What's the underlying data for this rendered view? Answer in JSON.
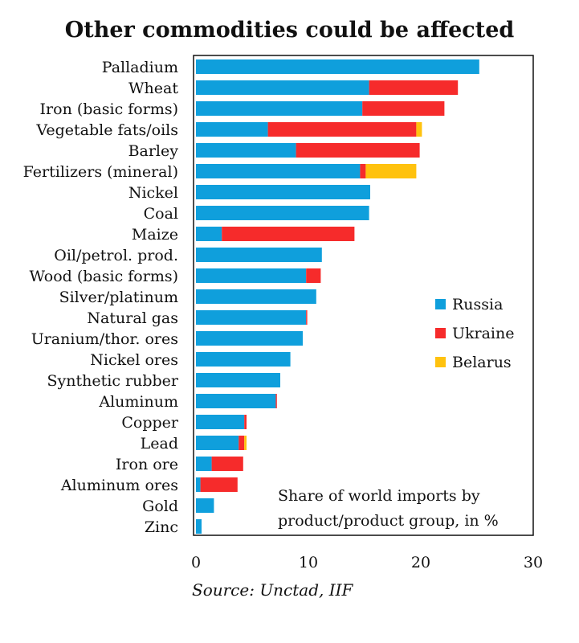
{
  "chart_data": {
    "type": "bar",
    "stacked": true,
    "orientation": "horizontal",
    "title": "Other commodities could be affected",
    "categories": [
      "Palladium",
      "Wheat",
      "Iron (basic forms)",
      "Vegetable fats/oils",
      "Barley",
      "Fertilizers (mineral)",
      "Nickel",
      "Coal",
      "Maize",
      "Oil/petrol. prod.",
      "Wood (basic forms)",
      "Silver/platinum",
      "Natural gas",
      "Uranium/thor. ores",
      "Nickel ores",
      "Synthetic rubber",
      "Aluminum",
      "Copper",
      "Lead",
      "Iron ore",
      "Aluminum ores",
      "Gold",
      "Zinc"
    ],
    "series": [
      {
        "name": "Russia",
        "color": "#0f9fdc",
        "values": [
          25.2,
          15.4,
          14.8,
          6.4,
          8.9,
          14.6,
          15.5,
          15.4,
          2.3,
          11.2,
          9.8,
          10.7,
          9.8,
          9.5,
          8.4,
          7.5,
          7.1,
          4.3,
          3.8,
          1.4,
          0.4,
          1.6,
          0.5
        ]
      },
      {
        "name": "Ukraine",
        "color": "#f62b2b",
        "values": [
          0,
          7.9,
          7.3,
          13.2,
          11.0,
          0.5,
          0,
          0,
          11.8,
          0,
          1.3,
          0,
          0.1,
          0,
          0,
          0,
          0.1,
          0.2,
          0.5,
          2.8,
          3.3,
          0,
          0
        ]
      },
      {
        "name": "Belarus",
        "color": "#ffc20e",
        "values": [
          0,
          0,
          0,
          0.5,
          0,
          4.5,
          0,
          0,
          0,
          0,
          0,
          0,
          0,
          0,
          0,
          0,
          0,
          0,
          0.2,
          0,
          0,
          0,
          0
        ]
      }
    ],
    "xlim": [
      0,
      30
    ],
    "xticks": [
      0,
      10,
      20,
      30
    ],
    "xlabel": "",
    "ylabel": "",
    "legend_position": "right-middle"
  },
  "note": {
    "line1": "Share of world imports by",
    "line2": "product/product group, in %"
  },
  "source": "Source: Unctad, IIF"
}
